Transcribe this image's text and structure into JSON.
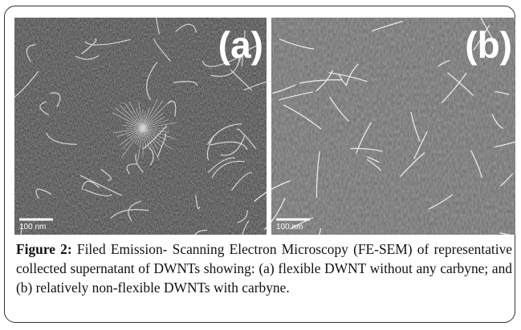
{
  "figure": {
    "panels": [
      {
        "label": "(a)",
        "scale_bar": "100 nm"
      },
      {
        "label": "(b)",
        "scale_bar": "100 nm"
      }
    ],
    "caption": {
      "label": "Figure 2:",
      "text": "Filed Emission- Scanning Electron Microscopy (FE-SEM) of representative collected supernatant of DWNTs showing: (a) flexible DWNT without any carbyne; and (b) relatively non-flexible DWNTs with carbyne."
    }
  }
}
